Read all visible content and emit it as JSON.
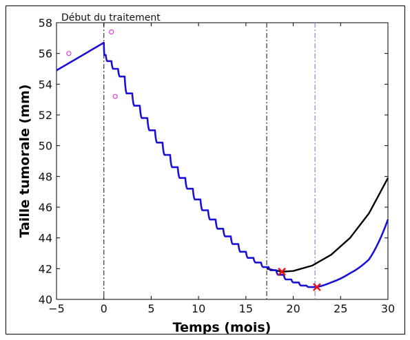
{
  "chart_data": {
    "type": "line",
    "title": "",
    "xlabel": "Temps (mois)",
    "ylabel": "Taille tumorale (mm)",
    "xlim": [
      -5,
      30
    ],
    "ylim": [
      40,
      58
    ],
    "xticks": [
      -5,
      0,
      5,
      10,
      15,
      20,
      25,
      30
    ],
    "yticks": [
      40,
      42,
      44,
      46,
      48,
      50,
      52,
      54,
      56,
      58
    ],
    "grid": false,
    "legend": "none",
    "annotation": "Début du traitement",
    "vertical_lines": [
      {
        "x": 0,
        "color": "#444444"
      },
      {
        "x": 17.2,
        "color": "#444444"
      },
      {
        "x": 22.3,
        "color": "#8a8ae6"
      }
    ],
    "observations": {
      "color": "#e23de0",
      "points": [
        [
          -3.7,
          56.0
        ],
        [
          0.8,
          57.4
        ],
        [
          1.2,
          53.2
        ]
      ]
    },
    "series": [
      {
        "color": "#1a0fd6",
        "pre_treatment": [
          [
            -5,
            54.9
          ],
          [
            0,
            56.7
          ]
        ],
        "treatment_steps": [
          {
            "x": 0.2,
            "y": 55.9
          },
          {
            "x": 0.8,
            "y": 55.5
          },
          {
            "x": 1.5,
            "y": 55.0
          },
          {
            "x": 2.2,
            "y": 54.5
          },
          {
            "x": 3.0,
            "y": 53.4
          },
          {
            "x": 3.8,
            "y": 52.6
          },
          {
            "x": 4.6,
            "y": 51.8
          },
          {
            "x": 5.4,
            "y": 51.0
          },
          {
            "x": 6.2,
            "y": 50.2
          },
          {
            "x": 7.0,
            "y": 49.4
          },
          {
            "x": 7.8,
            "y": 48.6
          },
          {
            "x": 8.6,
            "y": 47.9
          },
          {
            "x": 9.4,
            "y": 47.2
          },
          {
            "x": 10.2,
            "y": 46.5
          },
          {
            "x": 11.0,
            "y": 45.8
          },
          {
            "x": 11.8,
            "y": 45.2
          },
          {
            "x": 12.6,
            "y": 44.6
          },
          {
            "x": 13.4,
            "y": 44.1
          },
          {
            "x": 14.2,
            "y": 43.6
          },
          {
            "x": 15.0,
            "y": 43.1
          },
          {
            "x": 15.8,
            "y": 42.7
          },
          {
            "x": 16.6,
            "y": 42.4
          },
          {
            "x": 17.4,
            "y": 42.1
          },
          {
            "x": 18.2,
            "y": 41.9
          },
          {
            "x": 19.0,
            "y": 41.6
          },
          {
            "x": 19.8,
            "y": 41.3
          },
          {
            "x": 20.6,
            "y": 41.1
          },
          {
            "x": 21.4,
            "y": 40.9
          },
          {
            "x": 22.2,
            "y": 40.8
          }
        ],
        "regrowth": [
          [
            22.5,
            40.8
          ],
          [
            24,
            41.1
          ],
          [
            26,
            41.7
          ],
          [
            28,
            42.6
          ],
          [
            30,
            45.2
          ]
        ]
      },
      {
        "color": "#000000",
        "points": [
          [
            17.2,
            42.0
          ],
          [
            18.8,
            41.8
          ],
          [
            20,
            41.85
          ],
          [
            22,
            42.2
          ],
          [
            24,
            42.9
          ],
          [
            26,
            44.0
          ],
          [
            28,
            45.6
          ],
          [
            30,
            47.9
          ]
        ]
      }
    ],
    "markers": {
      "color": "#e8141b",
      "points": [
        [
          18.8,
          41.8
        ],
        [
          22.5,
          40.8
        ]
      ]
    }
  }
}
